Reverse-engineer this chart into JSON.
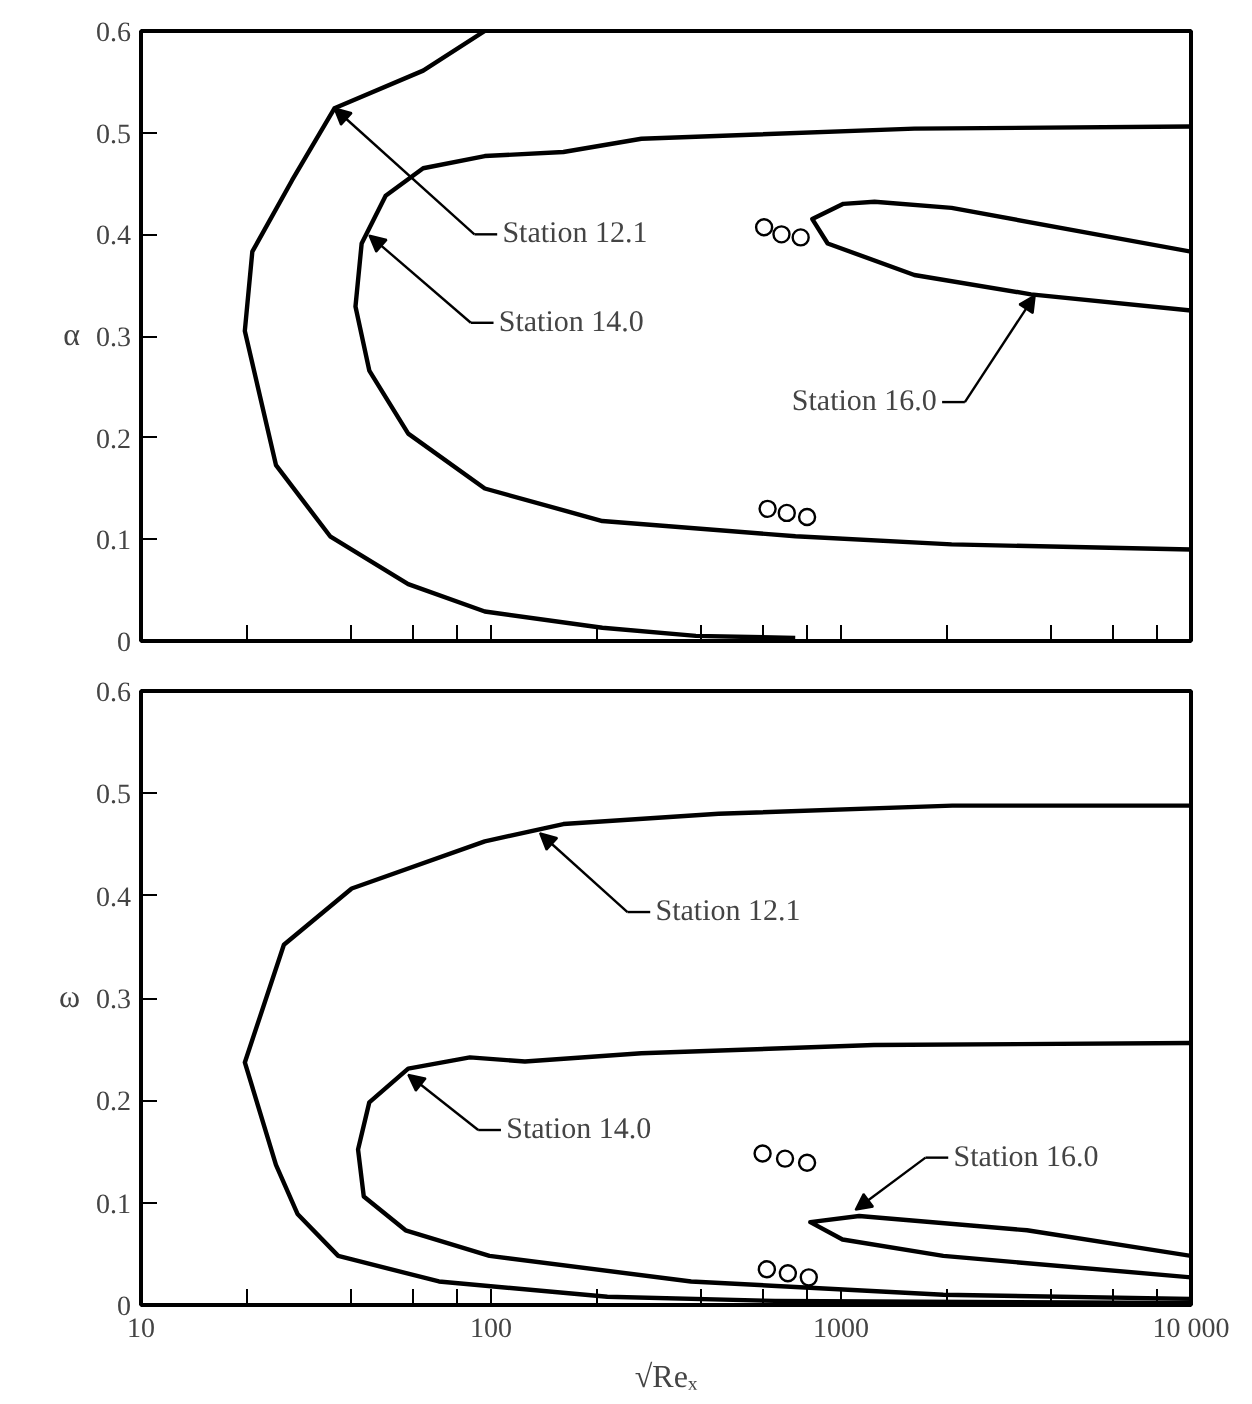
{
  "chart_data": [
    {
      "type": "line",
      "ylabel": "α",
      "log": "x",
      "xlim": [
        10,
        10000
      ],
      "ylim": [
        0,
        0.6
      ],
      "tick_labels": "y",
      "grid": false,
      "xticks": [
        {
          "value": 10,
          "label": null
        },
        {
          "value": 20,
          "label": null
        },
        {
          "value": 40,
          "label": null
        },
        {
          "value": 60,
          "label": null
        },
        {
          "value": 80,
          "label": null
        },
        {
          "value": 100,
          "label": null
        },
        {
          "value": 200,
          "label": null
        },
        {
          "value": 400,
          "label": null
        },
        {
          "value": 600,
          "label": null
        },
        {
          "value": 800,
          "label": null
        },
        {
          "value": 1000,
          "label": null
        },
        {
          "value": 2000,
          "label": null
        },
        {
          "value": 4000,
          "label": null
        },
        {
          "value": 6000,
          "label": null
        },
        {
          "value": 8000,
          "label": null
        },
        {
          "value": 10000,
          "label": null
        }
      ],
      "yticks": [
        0,
        0.1,
        0.2,
        0.3,
        0.4,
        0.5,
        0.6
      ],
      "series": [
        {
          "color": "#000000",
          "x": [
            96,
            64,
            35.7,
            27,
            20.8,
            19.8,
            24.3,
            34.7,
            58,
            96,
            208,
            385,
            740
          ],
          "values": [
            0.6,
            0.561,
            0.524,
            0.453,
            0.383,
            0.305,
            0.173,
            0.103,
            0.056,
            0.029,
            0.013,
            0.005,
            0.003
          ]
        },
        {
          "color": "#000000",
          "x": [
            10000,
            1620,
            269,
            161,
            96,
            64,
            50,
            42.7,
            41,
            44.9,
            58,
            96,
            208,
            741,
            2070,
            10000
          ],
          "values": [
            0.506,
            0.504,
            0.494,
            0.481,
            0.477,
            0.465,
            0.438,
            0.391,
            0.329,
            0.266,
            0.204,
            0.15,
            0.118,
            0.103,
            0.095,
            0.09
          ]
        },
        {
          "color": "#000000",
          "x": [
            10000,
            2070,
            1247,
            1016,
            828,
            916,
            1620,
            3490,
            10000
          ],
          "values": [
            0.383,
            0.426,
            0.432,
            0.43,
            0.415,
            0.391,
            0.36,
            0.341,
            0.325
          ]
        },
        {
          "type": "scatter",
          "marker": "circle",
          "color": "#000000",
          "x": [
            603,
            676,
            767,
            617,
            700,
            800
          ],
          "values": [
            0.407,
            0.4,
            0.397,
            0.13,
            0.126,
            0.122
          ]
        }
      ],
      "annotations": [
        {
          "text": "Station 12.1",
          "x": 35.7,
          "y": 0.524
        },
        {
          "text": "Station 14.0",
          "x": 44.9,
          "y": 0.399
        },
        {
          "text": "Station 16.0",
          "x": 3580,
          "y": 0.34
        }
      ]
    },
    {
      "type": "line",
      "ylabel": "ω",
      "xlabel": "√Reₓ",
      "log": "x",
      "xlim": [
        10,
        10000
      ],
      "ylim": [
        0,
        0.6
      ],
      "grid": false,
      "xticks": [
        {
          "value": 10,
          "label": "10"
        },
        {
          "value": 20,
          "label": null
        },
        {
          "value": 40,
          "label": null
        },
        {
          "value": 60,
          "label": null
        },
        {
          "value": 80,
          "label": null
        },
        {
          "value": 100,
          "label": "100"
        },
        {
          "value": 200,
          "label": null
        },
        {
          "value": 400,
          "label": null
        },
        {
          "value": 600,
          "label": null
        },
        {
          "value": 800,
          "label": null
        },
        {
          "value": 1000,
          "label": "1000"
        },
        {
          "value": 2000,
          "label": null
        },
        {
          "value": 4000,
          "label": null
        },
        {
          "value": 6000,
          "label": null
        },
        {
          "value": 8000,
          "label": null
        },
        {
          "value": 10000,
          "label": "10 000"
        }
      ],
      "yticks": [
        0,
        0.1,
        0.2,
        0.3,
        0.4,
        0.5,
        0.6
      ],
      "series": [
        {
          "color": "#000000",
          "x": [
            10000,
            2080,
            447,
            161,
            96,
            40,
            25.6,
            19.8,
            24.3,
            28,
            36.6,
            71,
            215,
            649,
            10000
          ],
          "values": [
            0.488,
            0.488,
            0.48,
            0.47,
            0.453,
            0.407,
            0.352,
            0.237,
            0.137,
            0.089,
            0.048,
            0.023,
            0.008,
            0.004,
            0.002
          ]
        },
        {
          "color": "#000000",
          "x": [
            10000,
            1242,
            269,
            125,
            87,
            58,
            44.9,
            41.7,
            43.3,
            57,
            99,
            373,
            1960,
            10000
          ],
          "values": [
            0.256,
            0.254,
            0.246,
            0.238,
            0.242,
            0.231,
            0.198,
            0.152,
            0.106,
            0.073,
            0.048,
            0.023,
            0.01,
            0.006
          ]
        },
        {
          "color": "#000000",
          "x": [
            10000,
            3400,
            1127,
            817,
            1010,
            1960,
            10000
          ],
          "values": [
            0.048,
            0.073,
            0.087,
            0.081,
            0.064,
            0.048,
            0.027
          ]
        },
        {
          "type": "scatter",
          "marker": "circle",
          "color": "#000000",
          "x": [
            597,
            692,
            800,
            614,
            705,
            809
          ],
          "values": [
            0.148,
            0.143,
            0.139,
            0.035,
            0.031,
            0.027
          ]
        }
      ],
      "annotations": [
        {
          "text": "Station 12.1",
          "x": 138,
          "y": 0.461
        },
        {
          "text": "Station 14.0",
          "x": 58,
          "y": 0.225
        },
        {
          "text": "Station 16.0",
          "x": 1100,
          "y": 0.093
        }
      ]
    }
  ]
}
